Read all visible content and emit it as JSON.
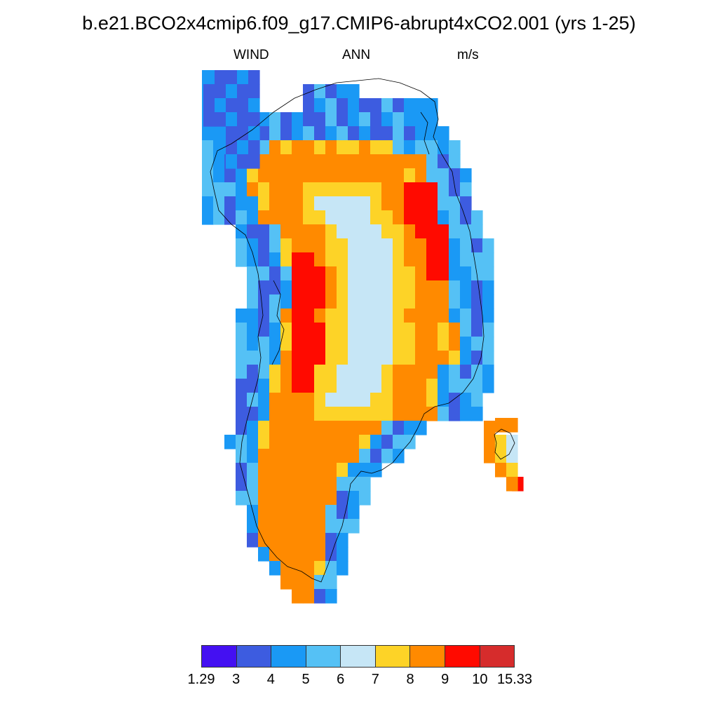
{
  "title": "b.e21.BCO2x4cmip6.f09_g17.CMIP6-abrupt4xCO2.001 (yrs 1-25)",
  "subtitle_left": "WIND",
  "subtitle_center": "ANN",
  "subtitle_right": "m/s",
  "colorbar": {
    "colors": [
      "#4410f2",
      "#3d5ce0",
      "#1a99f5",
      "#55c1f5",
      "#c6e6f6",
      "#fdd327",
      "#ff8a00",
      "#ff0a00",
      "#d62c2c"
    ],
    "labels": [
      "1.29",
      "3",
      "4",
      "5",
      "6",
      "7",
      "8",
      "9",
      "10",
      "15.33"
    ]
  }
}
